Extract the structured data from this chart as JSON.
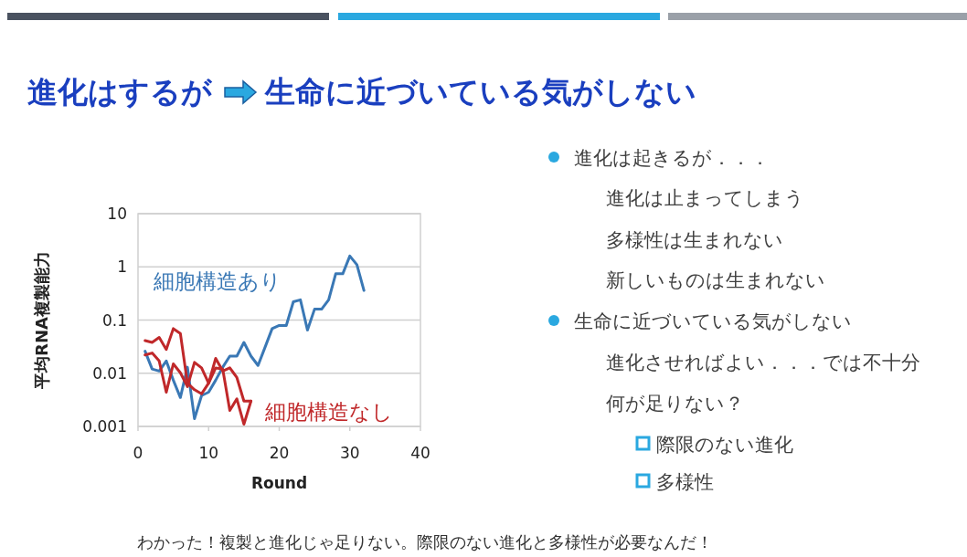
{
  "chart_data": [
    {
      "type": "line",
      "ylabel": "平均RNA複製能力",
      "xlabel": "Round",
      "log": "y",
      "xlim": [
        0,
        40
      ],
      "xticks": [
        0,
        10,
        20,
        30,
        40
      ],
      "ylim": [
        0.001,
        10
      ],
      "yticks": [
        0.001,
        0.01,
        0.1,
        1,
        10
      ],
      "grid": "y",
      "annotations": [
        "わかった！複製と進化じゃ足りない。際限のない進化と多様性が必要なんだ！"
      ],
      "series": [
        {
          "name": "細胞構造あり",
          "color": "#3a78b5",
          "x": [
            1,
            2,
            3,
            4,
            5,
            6,
            7,
            8,
            9,
            10,
            11,
            12,
            13,
            14,
            15,
            16,
            17,
            18,
            19,
            20,
            21,
            22,
            23,
            24,
            25,
            26,
            27,
            28,
            29,
            30,
            31,
            32
          ],
          "values": [
            0.026,
            0.012,
            0.011,
            0.017,
            0.0074,
            0.0035,
            0.013,
            0.0014,
            0.0038,
            0.0044,
            0.0074,
            0.013,
            0.021,
            0.021,
            0.038,
            0.021,
            0.014,
            0.031,
            0.069,
            0.079,
            0.079,
            0.22,
            0.24,
            0.065,
            0.16,
            0.16,
            0.24,
            0.74,
            0.74,
            1.6,
            1.1,
            0.36
          ]
        },
        {
          "name": "細胞構造なし",
          "color": "#c0282a",
          "x": [
            1,
            2,
            3,
            4,
            5,
            6,
            7,
            8,
            9,
            10,
            11,
            12,
            13,
            14,
            15,
            16
          ],
          "values": [
            0.041,
            0.038,
            0.047,
            0.028,
            0.069,
            0.056,
            0.0065,
            0.0049,
            0.0041,
            0.0065,
            0.019,
            0.011,
            0.0126,
            0.0083,
            0.003,
            0.003
          ]
        },
        {
          "color": "#c0282a",
          "x": [
            1,
            2,
            3,
            4,
            5,
            6,
            7,
            8,
            9,
            10,
            11,
            12,
            13,
            14,
            15,
            16
          ],
          "values": [
            0.022,
            0.024,
            0.017,
            0.0044,
            0.015,
            0.0102,
            0.0056,
            0.016,
            0.0126,
            0.0065,
            0.0126,
            0.012,
            0.002,
            0.0033,
            0.0011,
            0.003
          ]
        }
      ]
    },
    {
      "type": "other",
      "title": "進化はするが",
      "subtitle": "生命に近づいている気がしない",
      "annotations": [
        "進化は起きるが．．．",
        "進化は止まってしまう",
        "多様性は生まれない",
        "新しいものは生まれない",
        "生命に近づいている気がしない",
        "進化させればよい．．．では不十分",
        "何が足りない？",
        "際限のない進化",
        "多様性"
      ]
    }
  ]
}
